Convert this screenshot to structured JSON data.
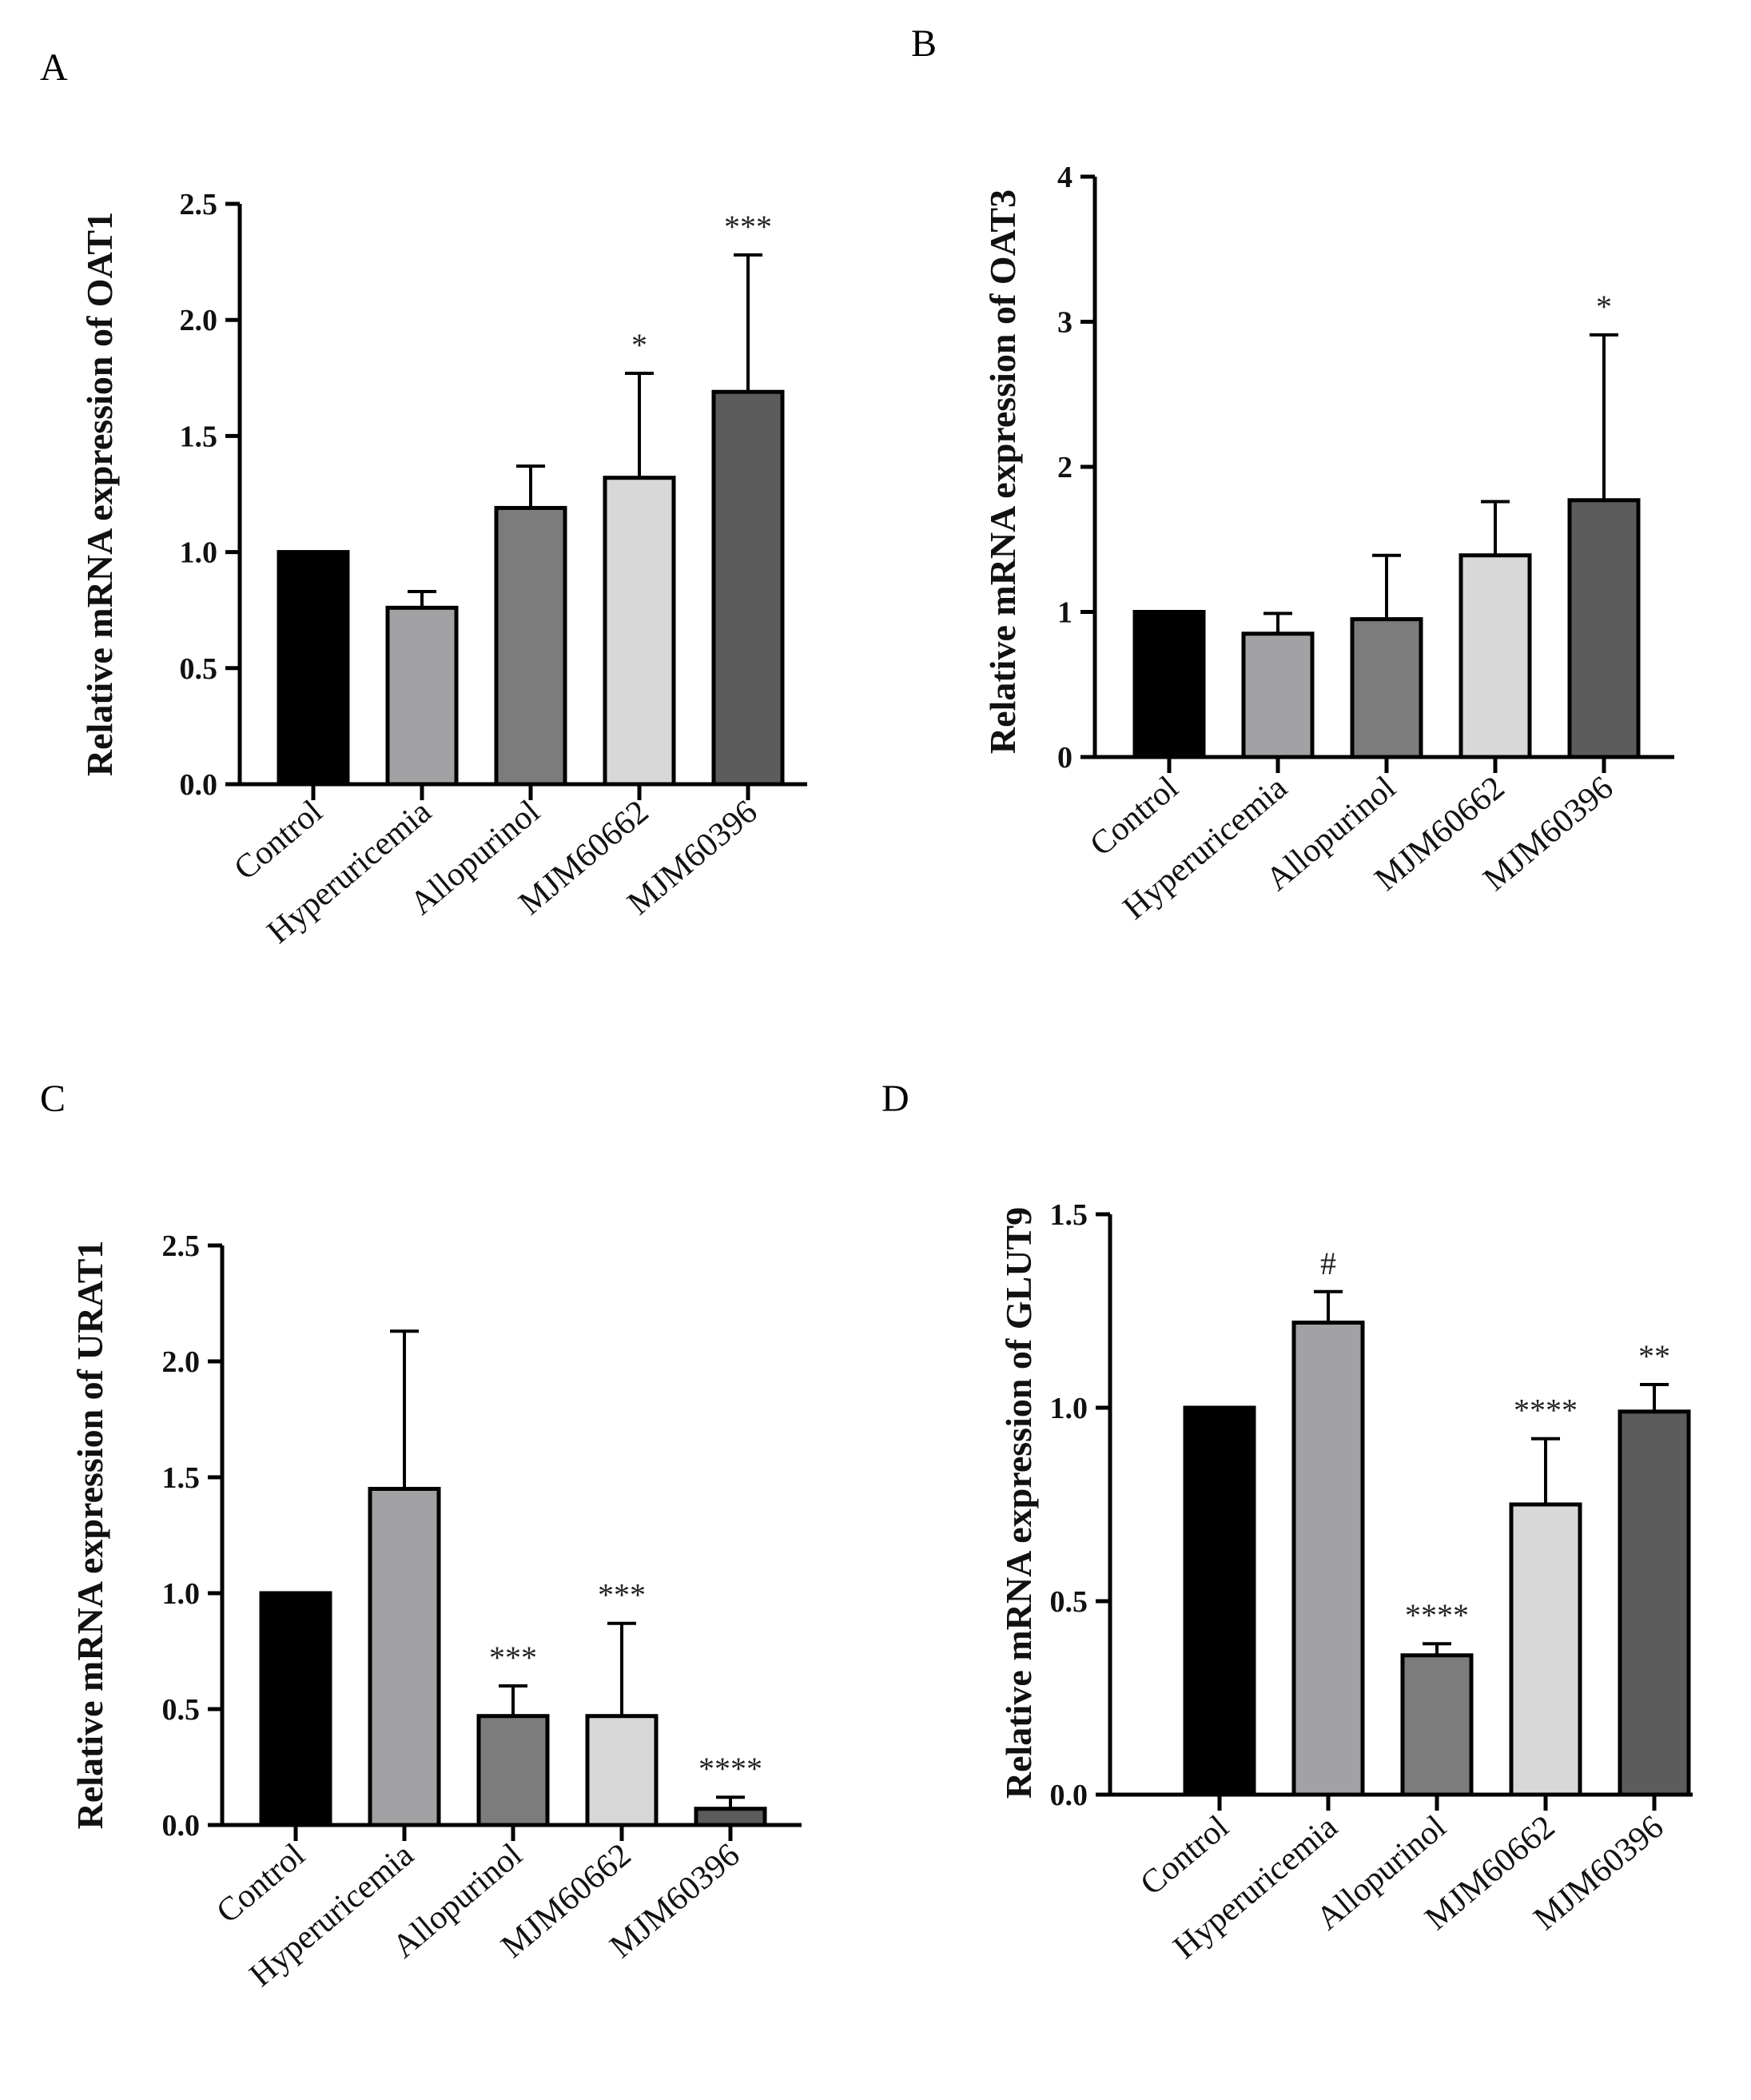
{
  "figure": {
    "panel_letters": [
      "A",
      "B",
      "C",
      "D"
    ]
  },
  "chart_data": [
    {
      "type": "bar",
      "panel": "A",
      "title": "",
      "xlabel": "",
      "ylabel": "Relative mRNA expression of OAT1",
      "categories": [
        "Control",
        "Hyperuricemia",
        "Allopurinol",
        "MJM60662",
        "MJM60396"
      ],
      "values": [
        1.0,
        0.76,
        1.19,
        1.32,
        1.69
      ],
      "errors": [
        0.0,
        0.07,
        0.18,
        0.45,
        0.59
      ],
      "annotations": [
        "",
        "",
        "",
        "*",
        "***"
      ],
      "ylim": [
        0,
        2.5
      ],
      "yticks": [
        0.0,
        0.5,
        1.0,
        1.5,
        2.0,
        2.5
      ],
      "ytick_labels": [
        "0.0",
        "0.5",
        "1.0",
        "1.5",
        "2.0",
        "2.5"
      ],
      "bar_colors": [
        "#000000",
        "#a2a2a5",
        "#7c7c7c",
        "#d8d8d8",
        "#5c5c5c"
      ]
    },
    {
      "type": "bar",
      "panel": "B",
      "title": "",
      "xlabel": "",
      "ylabel": "Relative mRNA expression of OAT3",
      "categories": [
        "Control",
        "Hyperuricemia",
        "Allopurinol",
        "MJM60662",
        "MJM60396"
      ],
      "values": [
        1.0,
        0.85,
        0.95,
        1.39,
        1.77
      ],
      "errors": [
        0.0,
        0.14,
        0.44,
        0.37,
        1.14
      ],
      "annotations": [
        "",
        "",
        "",
        "",
        "*"
      ],
      "ylim": [
        0,
        4
      ],
      "yticks": [
        0,
        1,
        2,
        3,
        4
      ],
      "ytick_labels": [
        "0",
        "1",
        "2",
        "3",
        "4"
      ],
      "bar_colors": [
        "#000000",
        "#a2a2a5",
        "#7c7c7c",
        "#d8d8d8",
        "#5c5c5c"
      ]
    },
    {
      "type": "bar",
      "panel": "C",
      "title": "",
      "xlabel": "",
      "ylabel": "Relative mRNA expression of URAT1",
      "categories": [
        "Control",
        "Hyperuricemia",
        "Allopurinol",
        "MJM60662",
        "MJM60396"
      ],
      "values": [
        1.0,
        1.45,
        0.47,
        0.47,
        0.07
      ],
      "errors": [
        0.0,
        0.68,
        0.13,
        0.4,
        0.05
      ],
      "annotations": [
        "",
        "",
        "***",
        "***",
        "****"
      ],
      "ylim": [
        0,
        2.5
      ],
      "yticks": [
        0.0,
        0.5,
        1.0,
        1.5,
        2.0,
        2.5
      ],
      "ytick_labels": [
        "0.0",
        "0.5",
        "1.0",
        "1.5",
        "2.0",
        "2.5"
      ],
      "bar_colors": [
        "#000000",
        "#a2a2a5",
        "#7c7c7c",
        "#d8d8d8",
        "#5c5c5c"
      ]
    },
    {
      "type": "bar",
      "panel": "D",
      "title": "",
      "xlabel": "",
      "ylabel": "Relative mRNA expression of GLUT9",
      "categories": [
        "Control",
        "Hyperuricemia",
        "Allopurinol",
        "MJM60662",
        "MJM60396"
      ],
      "values": [
        1.0,
        1.22,
        0.36,
        0.75,
        0.99
      ],
      "errors": [
        0.0,
        0.08,
        0.03,
        0.17,
        0.07
      ],
      "annotations": [
        "",
        "#",
        "****",
        "****",
        "**"
      ],
      "ylim": [
        0,
        1.5
      ],
      "yticks": [
        0.0,
        0.5,
        1.0,
        1.5
      ],
      "ytick_labels": [
        "0.0",
        "0.5",
        "1.0",
        "1.5"
      ],
      "bar_colors": [
        "#000000",
        "#a2a2a5",
        "#7c7c7c",
        "#d8d8d8",
        "#5c5c5c"
      ]
    }
  ]
}
